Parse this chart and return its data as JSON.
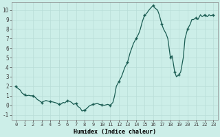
{
  "title": "",
  "xlabel": "Humidex (Indice chaleur)",
  "ylabel": "",
  "background_color": "#cceee8",
  "plot_bg_color": "#cceee8",
  "line_color": "#1a5c52",
  "marker_color": "#1a5c52",
  "grid_major_color": "#b8ddd8",
  "grid_minor_color": "#d0eeea",
  "ylim": [
    -1.5,
    10.8
  ],
  "xlim": [
    -0.5,
    23.5
  ],
  "yticks": [
    -1,
    0,
    1,
    2,
    3,
    4,
    5,
    6,
    7,
    8,
    9,
    10
  ],
  "xticks": [
    0,
    1,
    2,
    3,
    4,
    5,
    6,
    7,
    8,
    9,
    10,
    11,
    12,
    13,
    14,
    15,
    16,
    17,
    18,
    19,
    20,
    21,
    22,
    23
  ],
  "x": [
    0,
    0.2,
    0.5,
    0.7,
    1.0,
    1.2,
    1.5,
    1.7,
    2.0,
    2.3,
    2.5,
    2.7,
    3.0,
    3.2,
    3.5,
    3.7,
    4.0,
    4.3,
    4.5,
    4.7,
    5.0,
    5.3,
    5.5,
    5.7,
    6.0,
    6.3,
    6.5,
    6.7,
    7.0,
    7.2,
    7.5,
    7.7,
    8.0,
    8.3,
    8.5,
    8.7,
    9.0,
    9.3,
    9.5,
    9.7,
    10.0,
    10.3,
    10.5,
    10.7,
    11.0,
    11.3,
    11.5,
    11.7,
    12.0,
    12.3,
    12.5,
    12.7,
    13.0,
    13.3,
    13.5,
    13.7,
    14.0,
    14.3,
    14.5,
    14.7,
    15.0,
    15.2,
    15.5,
    15.7,
    16.0,
    16.2,
    16.5,
    16.7,
    17.0,
    17.2,
    17.5,
    17.7,
    18.0,
    18.2,
    18.5,
    18.7,
    19.0,
    19.2,
    19.5,
    19.7,
    20.0,
    20.3,
    20.5,
    20.7,
    21.0,
    21.2,
    21.5,
    21.7,
    22.0,
    22.3,
    22.5,
    22.7,
    23.0
  ],
  "y": [
    2.0,
    1.8,
    1.6,
    1.3,
    1.1,
    1.0,
    1.05,
    1.0,
    1.0,
    0.8,
    0.6,
    0.5,
    0.3,
    0.4,
    0.5,
    0.45,
    0.4,
    0.35,
    0.3,
    0.25,
    0.1,
    0.15,
    0.3,
    0.25,
    0.5,
    0.4,
    0.3,
    0.1,
    0.2,
    -0.1,
    -0.3,
    -0.6,
    -0.5,
    -0.3,
    -0.1,
    0.0,
    0.1,
    0.15,
    0.2,
    0.1,
    0.05,
    0.0,
    0.05,
    0.1,
    0.0,
    0.3,
    1.0,
    2.0,
    2.5,
    3.0,
    3.5,
    4.0,
    4.5,
    5.5,
    6.0,
    6.5,
    7.0,
    7.5,
    8.0,
    8.7,
    9.5,
    9.6,
    10.0,
    10.2,
    10.5,
    10.2,
    10.0,
    9.5,
    8.5,
    8.0,
    7.5,
    7.0,
    5.0,
    5.2,
    3.5,
    3.0,
    3.2,
    3.5,
    5.0,
    7.0,
    8.0,
    8.5,
    9.0,
    9.0,
    9.2,
    9.0,
    9.5,
    9.3,
    9.5,
    9.3,
    9.5,
    9.4,
    9.5
  ],
  "marker_x": [
    0,
    1,
    2,
    3,
    4,
    5,
    6,
    7,
    8,
    9,
    10,
    11,
    12,
    13,
    14,
    15,
    16,
    17,
    18,
    18.5,
    19,
    20,
    21,
    22,
    23
  ],
  "marker_y": [
    2.0,
    1.1,
    1.0,
    0.3,
    0.4,
    0.1,
    0.5,
    0.2,
    -0.5,
    0.1,
    0.05,
    0.0,
    2.5,
    4.5,
    7.0,
    9.5,
    10.5,
    8.5,
    5.0,
    3.5,
    3.2,
    8.0,
    9.2,
    9.5,
    9.5
  ]
}
